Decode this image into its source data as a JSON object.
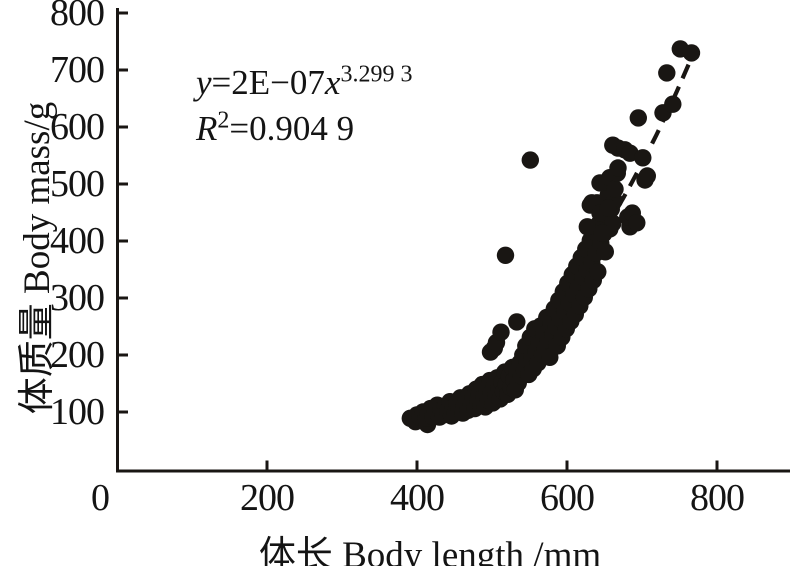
{
  "figure": {
    "ink_color": "#191613",
    "marker_color": "#191613",
    "background": "#ffffff"
  },
  "equation": {
    "line1": {
      "lhs": "y",
      "eq": "=",
      "coef": "2E−07",
      "var": "x",
      "exp": "3.299 3"
    },
    "line2": {
      "sym": "R",
      "sup": "2",
      "eq": "=",
      "val": "0.904 9"
    }
  },
  "chart_data": {
    "type": "scatter",
    "title": "",
    "xlabel": "体长 Body length /mm",
    "ylabel": "体质量 Body mass/g",
    "xlim": [
      0,
      897
    ],
    "ylim": [
      0,
      800
    ],
    "xticks": [
      0,
      200,
      400,
      600,
      800
    ],
    "yticks": [
      100,
      200,
      300,
      400,
      500,
      600,
      700,
      800
    ],
    "grid": false,
    "legend": "none",
    "marker": {
      "shape": "circle",
      "radius_px": 8.7
    },
    "trendline": {
      "style": "dashed",
      "equation_label": "y=2E−07x^3.299 3",
      "r2_label": "R²=0.904 9",
      "fit": {
        "a": 2.2e-07,
        "b": 3.2993
      },
      "x_draw_range": [
        598,
        763
      ]
    },
    "points": [
      [
        391,
        89
      ],
      [
        398,
        83
      ],
      [
        400,
        95
      ],
      [
        404,
        91
      ],
      [
        408,
        100
      ],
      [
        414,
        78
      ],
      [
        412,
        89
      ],
      [
        415,
        97
      ],
      [
        418,
        106
      ],
      [
        421,
        92
      ],
      [
        424,
        101
      ],
      [
        427,
        112
      ],
      [
        430,
        91
      ],
      [
        432,
        103
      ],
      [
        435,
        95
      ],
      [
        438,
        110
      ],
      [
        441,
        101
      ],
      [
        444,
        118
      ],
      [
        446,
        93
      ],
      [
        448,
        108
      ],
      [
        451,
        99
      ],
      [
        453,
        115
      ],
      [
        456,
        105
      ],
      [
        458,
        125
      ],
      [
        461,
        98
      ],
      [
        463,
        111
      ],
      [
        466,
        121
      ],
      [
        468,
        103
      ],
      [
        470,
        132
      ],
      [
        472,
        113
      ],
      [
        475,
        126
      ],
      [
        477,
        106
      ],
      [
        479,
        140
      ],
      [
        481,
        118
      ],
      [
        483,
        131
      ],
      [
        485,
        112
      ],
      [
        487,
        148
      ],
      [
        489,
        126
      ],
      [
        491,
        109
      ],
      [
        493,
        138
      ],
      [
        495,
        121
      ],
      [
        497,
        155
      ],
      [
        499,
        133
      ],
      [
        501,
        116
      ],
      [
        503,
        146
      ],
      [
        505,
        129
      ],
      [
        507,
        160
      ],
      [
        509,
        141
      ],
      [
        511,
        123
      ],
      [
        513,
        152
      ],
      [
        515,
        136
      ],
      [
        517,
        170
      ],
      [
        519,
        149
      ],
      [
        521,
        131
      ],
      [
        523,
        163
      ],
      [
        525,
        143
      ],
      [
        527,
        178
      ],
      [
        529,
        156
      ],
      [
        531,
        139
      ],
      [
        533,
        168
      ],
      [
        535,
        151
      ],
      [
        498,
        205
      ],
      [
        503,
        212
      ],
      [
        506,
        222
      ],
      [
        512,
        240
      ],
      [
        533,
        258
      ],
      [
        518,
        375
      ],
      [
        551,
        542
      ],
      [
        537,
        186
      ],
      [
        539,
        163
      ],
      [
        541,
        200
      ],
      [
        543,
        173
      ],
      [
        545,
        216
      ],
      [
        547,
        189
      ],
      [
        549,
        166
      ],
      [
        551,
        231
      ],
      [
        553,
        196
      ],
      [
        555,
        176
      ],
      [
        557,
        246
      ],
      [
        559,
        206
      ],
      [
        561,
        186
      ],
      [
        563,
        221
      ],
      [
        565,
        251
      ],
      [
        567,
        201
      ],
      [
        569,
        236
      ],
      [
        571,
        211
      ],
      [
        573,
        266
      ],
      [
        575,
        226
      ],
      [
        577,
        196
      ],
      [
        579,
        256
      ],
      [
        581,
        236
      ],
      [
        583,
        281
      ],
      [
        585,
        249
      ],
      [
        587,
        216
      ],
      [
        589,
        296
      ],
      [
        591,
        263
      ],
      [
        593,
        231
      ],
      [
        595,
        311
      ],
      [
        597,
        276
      ],
      [
        599,
        246
      ],
      [
        601,
        326
      ],
      [
        603,
        291
      ],
      [
        605,
        259
      ],
      [
        607,
        341
      ],
      [
        609,
        306
      ],
      [
        611,
        271
      ],
      [
        613,
        356
      ],
      [
        615,
        319
      ],
      [
        617,
        286
      ],
      [
        619,
        371
      ],
      [
        621,
        336
      ],
      [
        623,
        301
      ],
      [
        625,
        386
      ],
      [
        627,
        349
      ],
      [
        629,
        316
      ],
      [
        631,
        401
      ],
      [
        633,
        361
      ],
      [
        635,
        331
      ],
      [
        637,
        416
      ],
      [
        639,
        379
      ],
      [
        641,
        346
      ],
      [
        643,
        431
      ],
      [
        645,
        396
      ],
      [
        647,
        459
      ],
      [
        649,
        413
      ],
      [
        651,
        381
      ],
      [
        653,
        446
      ],
      [
        655,
        481
      ],
      [
        657,
        421
      ],
      [
        659,
        456
      ],
      [
        661,
        431
      ],
      [
        663,
        471
      ],
      [
        631,
        463
      ],
      [
        633,
        467
      ],
      [
        627,
        425
      ],
      [
        640,
        467
      ],
      [
        644,
        449
      ],
      [
        647,
        414
      ],
      [
        655,
        458
      ],
      [
        684,
        425
      ],
      [
        644,
        502
      ],
      [
        653,
        503
      ],
      [
        657,
        511
      ],
      [
        664,
        491
      ],
      [
        667,
        519
      ],
      [
        668,
        528
      ],
      [
        668,
        563
      ],
      [
        661,
        568
      ],
      [
        677,
        560
      ],
      [
        684,
        554
      ],
      [
        701,
        546
      ],
      [
        704,
        507
      ],
      [
        707,
        514
      ],
      [
        681,
        442
      ],
      [
        687,
        449
      ],
      [
        693,
        432
      ],
      [
        695,
        616
      ],
      [
        728,
        625
      ],
      [
        741,
        640
      ],
      [
        733,
        695
      ],
      [
        751,
        737
      ],
      [
        766,
        730
      ]
    ]
  }
}
